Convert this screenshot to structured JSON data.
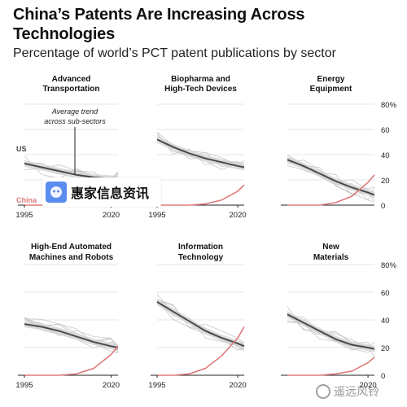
{
  "header": {
    "title": "China’s Patents Are Increasing Across Technologies",
    "subtitle": "Percentage of world’s PCT patent publications by sector"
  },
  "colors": {
    "us_line": "#4a4a4a",
    "us_band": "#cfcfcf",
    "china_line": "#e07a7a",
    "background_lines": "#c8c8c8",
    "grid": "#e6e6e6"
  },
  "chart_data": [
    {
      "type": "line",
      "title": "Advanced Transportation",
      "xlim": [
        1995,
        2022
      ],
      "ylim": [
        0,
        80
      ],
      "x_ticks": [
        "1995",
        "2020"
      ],
      "y_ticks": [],
      "grid": true,
      "annotation": "Average trend across sub-sectors",
      "labels": {
        "us": "US",
        "china": "China"
      },
      "series": [
        {
          "x": [
            1995,
            2000,
            2005,
            2010,
            2015,
            2020,
            2022
          ],
          "values": [
            33,
            30,
            27,
            24,
            22,
            21,
            21
          ]
        },
        {
          "x": [
            1995,
            2000,
            2005,
            2010,
            2015,
            2020,
            2022
          ],
          "values": [
            0,
            0,
            0,
            1,
            3,
            8,
            12
          ]
        }
      ]
    },
    {
      "type": "line",
      "title": "Biopharma and High-Tech Devices",
      "xlim": [
        1995,
        2022
      ],
      "ylim": [
        0,
        80
      ],
      "x_ticks": [
        "1995",
        "2020"
      ],
      "y_ticks": [],
      "grid": true,
      "series": [
        {
          "x": [
            1995,
            2000,
            2005,
            2010,
            2015,
            2020,
            2022
          ],
          "values": [
            52,
            46,
            41,
            37,
            34,
            31,
            30
          ]
        },
        {
          "x": [
            1995,
            2000,
            2005,
            2010,
            2015,
            2020,
            2022
          ],
          "values": [
            0,
            0,
            0,
            1,
            4,
            11,
            16
          ]
        }
      ]
    },
    {
      "type": "line",
      "title": "Energy Equipment",
      "xlim": [
        1995,
        2022
      ],
      "ylim": [
        0,
        80
      ],
      "x_ticks": [],
      "y_ticks": [
        "80%",
        "60",
        "40",
        "20",
        "0"
      ],
      "grid": true,
      "series": [
        {
          "x": [
            1995,
            2000,
            2005,
            2010,
            2015,
            2020,
            2022
          ],
          "values": [
            36,
            31,
            25,
            19,
            14,
            10,
            8
          ]
        },
        {
          "x": [
            1995,
            2000,
            2005,
            2010,
            2015,
            2020,
            2022
          ],
          "values": [
            0,
            0,
            0,
            2,
            7,
            18,
            24
          ]
        }
      ]
    },
    {
      "type": "line",
      "title": "High-End Automated Machines and Robots",
      "xlim": [
        1995,
        2022
      ],
      "ylim": [
        0,
        80
      ],
      "x_ticks": [
        "1995",
        "2020"
      ],
      "y_ticks": [],
      "grid": true,
      "series": [
        {
          "x": [
            1995,
            2000,
            2005,
            2010,
            2015,
            2020,
            2022
          ],
          "values": [
            37,
            35,
            32,
            28,
            24,
            21,
            20
          ]
        },
        {
          "x": [
            1995,
            2000,
            2005,
            2010,
            2015,
            2020,
            2022
          ],
          "values": [
            0,
            0,
            0,
            1,
            5,
            15,
            21
          ]
        }
      ]
    },
    {
      "type": "line",
      "title": "Information Technology",
      "xlim": [
        1995,
        2022
      ],
      "ylim": [
        0,
        80
      ],
      "x_ticks": [
        "1995",
        "2020"
      ],
      "y_ticks": [],
      "grid": true,
      "series": [
        {
          "x": [
            1995,
            2000,
            2005,
            2010,
            2015,
            2020,
            2022
          ],
          "values": [
            53,
            46,
            39,
            32,
            27,
            23,
            21
          ]
        },
        {
          "x": [
            1995,
            2000,
            2005,
            2010,
            2015,
            2020,
            2022
          ],
          "values": [
            0,
            0,
            1,
            5,
            14,
            27,
            35
          ]
        }
      ]
    },
    {
      "type": "line",
      "title": "New Materials",
      "xlim": [
        1995,
        2022
      ],
      "ylim": [
        0,
        80
      ],
      "x_ticks": [
        "2020"
      ],
      "y_ticks": [
        "80%",
        "60",
        "40",
        "20",
        "0"
      ],
      "grid": true,
      "series": [
        {
          "x": [
            1995,
            2000,
            2005,
            2010,
            2015,
            2020,
            2022
          ],
          "values": [
            44,
            38,
            32,
            26,
            22,
            20,
            19
          ]
        },
        {
          "x": [
            1995,
            2000,
            2005,
            2010,
            2015,
            2020,
            2022
          ],
          "values": [
            0,
            0,
            0,
            1,
            3,
            9,
            13
          ]
        }
      ]
    }
  ],
  "watermarks": {
    "center_text": "惠家信息资讯",
    "corner_text": "遥远风铃"
  }
}
